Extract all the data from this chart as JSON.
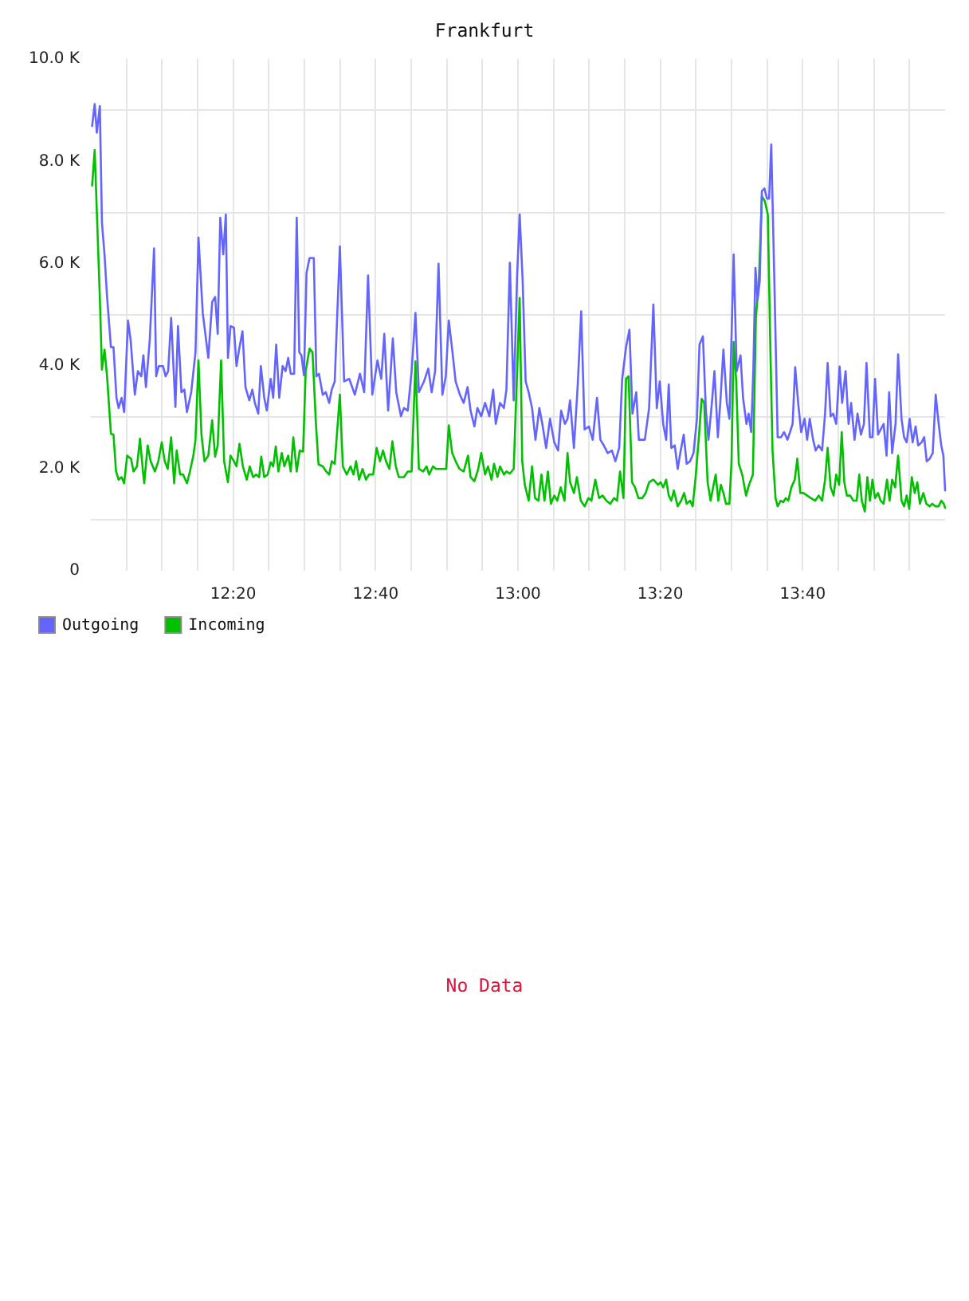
{
  "chart_data": {
    "type": "line",
    "title": "Frankfurt",
    "xlim": [
      12,
      14
    ],
    "xticks": [
      {
        "value": 12.0833,
        "label": null
      },
      {
        "value": 12.1667,
        "label": null
      },
      {
        "value": 12.25,
        "label": null
      },
      {
        "value": 12.3333,
        "label": "12:20"
      },
      {
        "value": 12.4167,
        "label": null
      },
      {
        "value": 12.5,
        "label": null
      },
      {
        "value": 12.5833,
        "label": null
      },
      {
        "value": 12.6667,
        "label": "12:40"
      },
      {
        "value": 12.75,
        "label": null
      },
      {
        "value": 12.8333,
        "label": null
      },
      {
        "value": 12.9167,
        "label": null
      },
      {
        "value": 13,
        "label": "13:00"
      },
      {
        "value": 13.0833,
        "label": null
      },
      {
        "value": 13.1667,
        "label": null
      },
      {
        "value": 13.25,
        "label": null
      },
      {
        "value": 13.3333,
        "label": "13:20"
      },
      {
        "value": 13.4167,
        "label": null
      },
      {
        "value": 13.5,
        "label": null
      },
      {
        "value": 13.5833,
        "label": null
      },
      {
        "value": 13.6667,
        "label": "13:40"
      },
      {
        "value": 13.75,
        "label": null
      },
      {
        "value": 13.8333,
        "label": null
      },
      {
        "value": 13.9167,
        "label": null
      }
    ],
    "ylim": [
      0,
      10000
    ],
    "yticks": [
      0,
      {
        "value": 1000,
        "label": null
      },
      {
        "value": 2000,
        "label": "2.0 K"
      },
      {
        "value": 3000,
        "label": null
      },
      {
        "value": 4000,
        "label": "4.0 K"
      },
      {
        "value": 5000,
        "label": null
      },
      {
        "value": 6000,
        "label": "6.0 K"
      },
      {
        "value": 7000,
        "label": null
      },
      {
        "value": 8000,
        "label": "8.0 K"
      },
      {
        "value": 9000,
        "label": null
      },
      {
        "value": 10000,
        "label": "10.0 K"
      }
    ],
    "grid": true,
    "legend": "bottom left",
    "marker": "none",
    "annotations": [
      "No Data"
    ],
    "series": [
      {
        "name": "Outgoing",
        "color": "#6464ff",
        "x": [
          12.003,
          12.009,
          12.014,
          12.021,
          12.026,
          12.032,
          12.038,
          12.047,
          12.053,
          12.06,
          12.065,
          12.072,
          12.078,
          12.087,
          12.093,
          12.103,
          12.11,
          12.118,
          12.123,
          12.129,
          12.138,
          12.148,
          12.153,
          12.159,
          12.169,
          12.175,
          12.181,
          12.188,
          12.198,
          12.204,
          12.212,
          12.219,
          12.225,
          12.235,
          12.245,
          12.252,
          12.262,
          12.275,
          12.284,
          12.291,
          12.297,
          12.303,
          12.31,
          12.316,
          12.321,
          12.327,
          12.335,
          12.341,
          12.347,
          12.355,
          12.362,
          12.371,
          12.378,
          12.384,
          12.392,
          12.398,
          12.406,
          12.412,
          12.421,
          12.427,
          12.434,
          12.441,
          12.449,
          12.456,
          12.462,
          12.468,
          12.476,
          12.482,
          12.488,
          12.493,
          12.499,
          12.505,
          12.512,
          12.522,
          12.528,
          12.534,
          12.543,
          12.55,
          12.558,
          12.564,
          12.571,
          12.583,
          12.593,
          12.605,
          12.618,
          12.63,
          12.64,
          12.649,
          12.659,
          12.671,
          12.68,
          12.687,
          12.696,
          12.707,
          12.715,
          12.726,
          12.733,
          12.742,
          12.751,
          12.76,
          12.768,
          12.78,
          12.79,
          12.798,
          12.806,
          12.814,
          12.823,
          12.831,
          12.838,
          12.846,
          12.854,
          12.864,
          12.873,
          12.882,
          12.889,
          12.898,
          12.905,
          12.914,
          12.923,
          12.933,
          12.942,
          12.948,
          12.958,
          12.967,
          12.973,
          12.981,
          12.99,
          12.998,
          13.004,
          13.011,
          13.018,
          13.025,
          13.033,
          13.041,
          13.05,
          13.057,
          13.066,
          13.075,
          13.085,
          13.094,
          13.101,
          13.11,
          13.116,
          13.122,
          13.131,
          13.14,
          13.148,
          13.156,
          13.166,
          13.175,
          13.185,
          13.193,
          13.201,
          13.21,
          13.22,
          13.228,
          13.237,
          13.244,
          13.253,
          13.261,
          13.268,
          13.277,
          13.283,
          13.297,
          13.307,
          13.317,
          13.325,
          13.332,
          13.34,
          13.347,
          13.353,
          13.359,
          13.367,
          13.374,
          13.38,
          13.388,
          13.395,
          13.403,
          13.411,
          13.419,
          13.425,
          13.433,
          13.44,
          13.446,
          13.454,
          13.46,
          13.468,
          13.474,
          13.481,
          13.489,
          13.495,
          13.505,
          13.512,
          13.521,
          13.527,
          13.535,
          13.54,
          13.546,
          13.551,
          13.556,
          13.561,
          13.566,
          13.571,
          13.577,
          13.583,
          13.588,
          13.593,
          13.6,
          13.608,
          13.616,
          13.623,
          13.631,
          13.637,
          13.643,
          13.649,
          13.656,
          13.663,
          13.671,
          13.677,
          13.683,
          13.691,
          13.697,
          13.704,
          13.712,
          13.719,
          13.725,
          13.732,
          13.738,
          13.745,
          13.753,
          13.759,
          13.767,
          13.774,
          13.78,
          13.788,
          13.795,
          13.803,
          13.81,
          13.816,
          13.824,
          13.83,
          13.836,
          13.843,
          13.849,
          13.856,
          13.863,
          13.869,
          13.876,
          13.884,
          13.89,
          13.898,
          13.904,
          13.91,
          13.917,
          13.924,
          13.931,
          13.937,
          13.945,
          13.951,
          13.957,
          13.964,
          13.971,
          13.978,
          13.985,
          13.991,
          13.996,
          14.0
        ],
        "values": [
          8690,
          9120,
          8560,
          9080,
          6800,
          6180,
          5350,
          4370,
          4370,
          3380,
          3180,
          3380,
          3100,
          4890,
          4520,
          3440,
          3900,
          3800,
          4210,
          3590,
          4520,
          6300,
          3800,
          4000,
          4000,
          3800,
          3900,
          4940,
          3200,
          4780,
          3490,
          3540,
          3100,
          3490,
          4270,
          6510,
          5040,
          4160,
          5250,
          5350,
          4630,
          6900,
          6180,
          6960,
          4160,
          4780,
          4750,
          4000,
          4320,
          4680,
          3590,
          3330,
          3540,
          3280,
          3070,
          4000,
          3380,
          3130,
          3750,
          3380,
          4420,
          3380,
          4000,
          3900,
          4160,
          3850,
          3850,
          6900,
          4270,
          4210,
          3820,
          5820,
          6110,
          6110,
          3800,
          3850,
          3440,
          3490,
          3280,
          3540,
          3700,
          6340,
          3700,
          3750,
          3440,
          3850,
          3490,
          5770,
          3440,
          4110,
          3750,
          4630,
          3130,
          4540,
          3490,
          3020,
          3180,
          3130,
          3900,
          5040,
          3490,
          3700,
          3950,
          3490,
          3900,
          6000,
          3440,
          3800,
          4890,
          4320,
          3700,
          3440,
          3280,
          3590,
          3130,
          2820,
          3180,
          3020,
          3280,
          3020,
          3540,
          2870,
          3280,
          3180,
          3540,
          6020,
          3330,
          5770,
          6960,
          5660,
          3700,
          3490,
          3180,
          2560,
          3180,
          2870,
          2400,
          2970,
          2510,
          2350,
          3130,
          2870,
          2970,
          3330,
          2400,
          3640,
          5070,
          2760,
          2820,
          2560,
          3380,
          2560,
          2450,
          2300,
          2350,
          2140,
          2400,
          3750,
          4370,
          4710,
          3070,
          3490,
          2560,
          2560,
          3180,
          5200,
          3180,
          3700,
          2870,
          2560,
          3640,
          2400,
          2450,
          1990,
          2300,
          2660,
          2090,
          2140,
          2300,
          2970,
          4420,
          4580,
          3130,
          2560,
          3280,
          3900,
          2610,
          3330,
          4320,
          3280,
          2970,
          6180,
          3900,
          4210,
          3380,
          2870,
          3070,
          2710,
          3900,
          5920,
          5300,
          5660,
          7420,
          7470,
          7270,
          7270,
          8330,
          5770,
          2610,
          2610,
          2710,
          2560,
          2710,
          2870,
          3980,
          3280,
          2710,
          2970,
          2560,
          2970,
          2560,
          2350,
          2450,
          2350,
          3070,
          4060,
          3020,
          3070,
          2870,
          3990,
          3280,
          3900,
          2870,
          3280,
          2560,
          3070,
          2660,
          2870,
          4060,
          2610,
          2610,
          3750,
          2660,
          2760,
          2870,
          2250,
          3490,
          2300,
          2870,
          4230,
          2970,
          2610,
          2510,
          2970,
          2510,
          2820,
          2450,
          2510,
          2610,
          2140,
          2190,
          2300,
          3440,
          2870,
          2450,
          2250,
          1570
        ]
      },
      {
        "name": "Incoming",
        "color": "#00c000",
        "x": [
          12.003,
          12.009,
          12.014,
          12.021,
          12.026,
          12.032,
          12.038,
          12.047,
          12.053,
          12.059,
          12.065,
          12.072,
          12.078,
          12.085,
          12.094,
          12.1,
          12.108,
          12.115,
          12.122,
          12.125,
          12.133,
          12.14,
          12.15,
          12.158,
          12.166,
          12.173,
          12.18,
          12.188,
          12.195,
          12.201,
          12.209,
          12.216,
          12.225,
          12.232,
          12.24,
          12.245,
          12.252,
          12.259,
          12.266,
          12.275,
          12.284,
          12.291,
          12.297,
          12.305,
          12.312,
          12.321,
          12.327,
          12.335,
          12.341,
          12.348,
          12.356,
          12.365,
          12.372,
          12.38,
          12.387,
          12.394,
          12.399,
          12.406,
          12.414,
          12.421,
          12.427,
          12.433,
          12.439,
          12.447,
          12.453,
          12.462,
          12.468,
          12.474,
          12.482,
          12.489,
          12.497,
          12.503,
          12.512,
          12.519,
          12.527,
          12.533,
          12.543,
          12.551,
          12.558,
          12.564,
          12.571,
          12.583,
          12.59,
          12.599,
          12.608,
          12.615,
          12.621,
          12.628,
          12.636,
          12.644,
          12.651,
          12.661,
          12.669,
          12.677,
          12.684,
          12.691,
          12.699,
          12.706,
          12.714,
          12.721,
          12.733,
          12.742,
          12.751,
          12.76,
          12.768,
          12.778,
          12.786,
          12.792,
          12.801,
          12.808,
          12.817,
          12.826,
          12.832,
          12.838,
          12.846,
          12.854,
          12.863,
          12.873,
          12.883,
          12.889,
          12.898,
          12.907,
          12.914,
          12.923,
          12.93,
          12.938,
          12.944,
          12.952,
          12.958,
          12.967,
          12.973,
          12.981,
          12.99,
          12.998,
          13.004,
          13.01,
          13.016,
          13.025,
          13.033,
          13.04,
          13.048,
          13.055,
          13.062,
          13.07,
          13.077,
          13.085,
          13.092,
          13.1,
          13.109,
          13.116,
          13.122,
          13.131,
          13.138,
          13.147,
          13.156,
          13.165,
          13.172,
          13.181,
          13.19,
          13.198,
          13.207,
          13.216,
          13.225,
          13.232,
          13.239,
          13.247,
          13.253,
          13.259,
          13.267,
          13.274,
          13.282,
          13.291,
          13.299,
          13.307,
          13.317,
          13.328,
          13.334,
          13.34,
          13.347,
          13.353,
          13.359,
          13.365,
          13.374,
          13.382,
          13.389,
          13.395,
          13.403,
          13.409,
          13.416,
          13.424,
          13.43,
          13.436,
          13.444,
          13.451,
          13.458,
          13.463,
          13.469,
          13.475,
          13.481,
          13.487,
          13.495,
          13.5,
          13.505,
          13.511,
          13.517,
          13.525,
          13.534,
          13.541,
          13.55,
          13.557,
          13.564,
          13.571,
          13.578,
          13.585,
          13.591,
          13.596,
          13.603,
          13.608,
          13.615,
          13.621,
          13.627,
          13.633,
          13.64,
          13.648,
          13.654,
          13.661,
          13.668,
          13.677,
          13.686,
          13.696,
          13.704,
          13.712,
          13.719,
          13.725,
          13.732,
          13.739,
          13.745,
          13.752,
          13.758,
          13.764,
          13.77,
          13.778,
          13.785,
          13.793,
          13.799,
          13.805,
          13.812,
          13.818,
          13.824,
          13.83,
          13.836,
          13.843,
          13.849,
          13.856,
          13.864,
          13.87,
          13.876,
          13.883,
          13.89,
          13.898,
          13.904,
          13.91,
          13.916,
          13.922,
          13.929,
          13.935,
          13.941,
          13.949,
          13.956,
          13.964,
          13.97,
          13.977,
          13.985,
          13.991,
          13.997,
          14.0
        ],
        "values": [
          7530,
          8220,
          7010,
          5350,
          3930,
          4320,
          3800,
          2680,
          2660,
          1940,
          1780,
          1830,
          1710,
          2250,
          2190,
          1940,
          2040,
          2580,
          1940,
          1710,
          2450,
          2140,
          1940,
          2140,
          2510,
          2140,
          1990,
          2610,
          1710,
          2350,
          1880,
          1880,
          1710,
          1940,
          2250,
          2560,
          4110,
          2660,
          2140,
          2250,
          2940,
          2230,
          2450,
          4110,
          2140,
          1730,
          2250,
          2140,
          2040,
          2480,
          2040,
          1780,
          2040,
          1830,
          1880,
          1830,
          2230,
          1830,
          1880,
          2120,
          2040,
          2430,
          1940,
          2300,
          2040,
          2250,
          1940,
          2610,
          1940,
          2350,
          2330,
          3900,
          4340,
          4270,
          2870,
          2080,
          2040,
          1940,
          1880,
          2140,
          2090,
          3440,
          2040,
          1880,
          2040,
          1880,
          2140,
          1780,
          1990,
          1780,
          1880,
          1880,
          2400,
          2140,
          2350,
          2140,
          1990,
          2530,
          2040,
          1830,
          1830,
          1940,
          1940,
          4090,
          1990,
          1940,
          2040,
          1880,
          2040,
          1990,
          1990,
          1990,
          1990,
          2840,
          2300,
          2140,
          1990,
          1940,
          2250,
          1830,
          1750,
          1990,
          2300,
          1880,
          2040,
          1780,
          2090,
          1830,
          2040,
          1880,
          1940,
          1900,
          1990,
          3900,
          5330,
          2140,
          1680,
          1370,
          2040,
          1420,
          1370,
          1880,
          1370,
          1940,
          1310,
          1470,
          1370,
          1630,
          1370,
          2300,
          1730,
          1520,
          1830,
          1370,
          1260,
          1420,
          1370,
          1780,
          1420,
          1470,
          1370,
          1310,
          1420,
          1370,
          1940,
          1420,
          3750,
          3800,
          1730,
          1630,
          1420,
          1420,
          1520,
          1730,
          1780,
          1680,
          1730,
          1630,
          1780,
          1470,
          1370,
          1570,
          1260,
          1370,
          1520,
          1310,
          1370,
          1260,
          1830,
          2660,
          3360,
          3280,
          1730,
          1370,
          1680,
          1880,
          1370,
          1680,
          1520,
          1310,
          1310,
          2140,
          4470,
          3700,
          2090,
          1880,
          1470,
          1680,
          1880,
          4940,
          5660,
          7320,
          7220,
          6960,
          4320,
          2350,
          1420,
          1260,
          1370,
          1340,
          1420,
          1370,
          1630,
          1780,
          2190,
          1520,
          1520,
          1470,
          1420,
          1370,
          1470,
          1370,
          1780,
          2400,
          1630,
          1470,
          1880,
          1680,
          2710,
          1730,
          1470,
          1470,
          1370,
          1370,
          1880,
          1370,
          1160,
          1830,
          1370,
          1780,
          1420,
          1520,
          1370,
          1310,
          1780,
          1370,
          1780,
          1630,
          2250,
          1370,
          1260,
          1470,
          1210,
          1830,
          1520,
          1730,
          1310,
          1520,
          1310,
          1260,
          1310,
          1260,
          1260,
          1370,
          1310,
          1230
        ]
      }
    ]
  }
}
